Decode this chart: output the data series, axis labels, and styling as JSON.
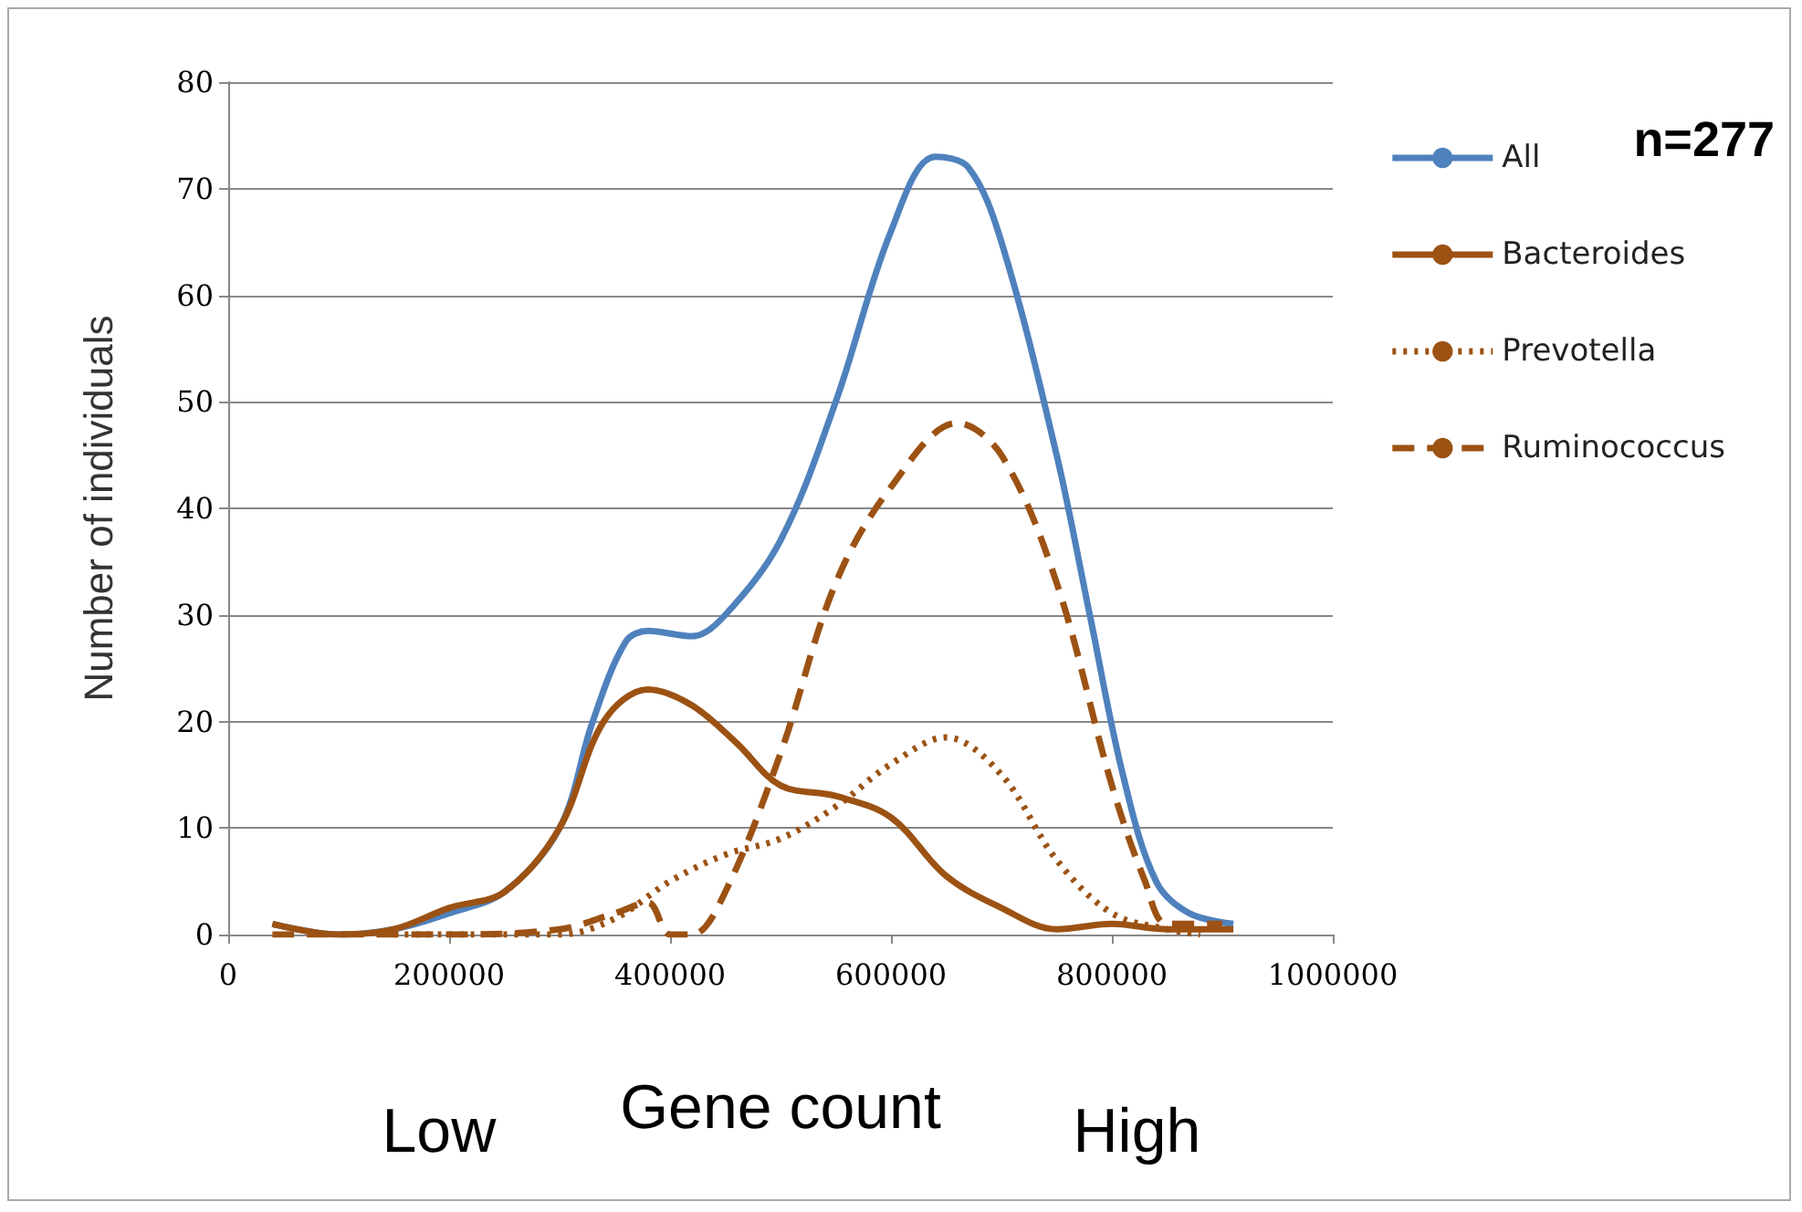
{
  "chart_data": {
    "type": "line",
    "xlabel": "Gene count",
    "ylabel": "Number of individuals",
    "annotations": [
      "Low",
      "High",
      "n=277"
    ],
    "xlim": [
      0,
      1000000
    ],
    "xticks": [
      0,
      200000,
      400000,
      600000,
      800000,
      1000000
    ],
    "ylim": [
      0,
      80
    ],
    "yticks": [
      0,
      10,
      20,
      30,
      40,
      50,
      60,
      70,
      80
    ],
    "grid": "y",
    "legend": "right",
    "series": [
      {
        "name": "All",
        "color": "#4f81bd",
        "line_style": "solid",
        "x": [
          40000,
          100000,
          150000,
          200000,
          250000,
          300000,
          330000,
          360000,
          380000,
          420000,
          450000,
          500000,
          550000,
          600000,
          640000,
          670000,
          700000,
          750000,
          780000,
          810000,
          840000,
          870000,
          910000
        ],
        "values": [
          1,
          0,
          0.5,
          2,
          4,
          10,
          20,
          27.5,
          28.5,
          28,
          30,
          37,
          50,
          66,
          73,
          72,
          65,
          45,
          30,
          15,
          5,
          2,
          1
        ]
      },
      {
        "name": "Bacteroides",
        "color": "#9c5213",
        "line_style": "solid",
        "x": [
          40000,
          100000,
          150000,
          200000,
          250000,
          300000,
          340000,
          380000,
          420000,
          460000,
          500000,
          550000,
          600000,
          650000,
          700000,
          750000,
          800000,
          850000,
          910000
        ],
        "values": [
          1,
          0,
          0.5,
          2.5,
          4,
          10,
          20,
          23,
          21.5,
          18,
          14,
          13,
          11,
          5.5,
          2.5,
          0.5,
          1,
          0.5,
          0.5
        ]
      },
      {
        "name": "Prevotella",
        "color": "#9c5213",
        "line_style": "dotted",
        "x": [
          150000,
          200000,
          300000,
          350000,
          400000,
          450000,
          500000,
          550000,
          600000,
          650000,
          700000,
          750000,
          800000,
          850000,
          880000
        ],
        "values": [
          0,
          0,
          0,
          1.5,
          5,
          7.5,
          9,
          12,
          16,
          18.5,
          15,
          7,
          2,
          0.5,
          0
        ]
      },
      {
        "name": "Ruminococcus",
        "color": "#9c5213",
        "line_style": "dashed",
        "x": [
          40000,
          200000,
          300000,
          350000,
          380000,
          400000,
          420000,
          450000,
          500000,
          550000,
          600000,
          660000,
          700000,
          750000,
          800000,
          830000,
          850000,
          900000
        ],
        "values": [
          0,
          0,
          0.5,
          2,
          3,
          0,
          0,
          4,
          17,
          33,
          42,
          48,
          45,
          33,
          14,
          5,
          1,
          1
        ]
      }
    ]
  }
}
